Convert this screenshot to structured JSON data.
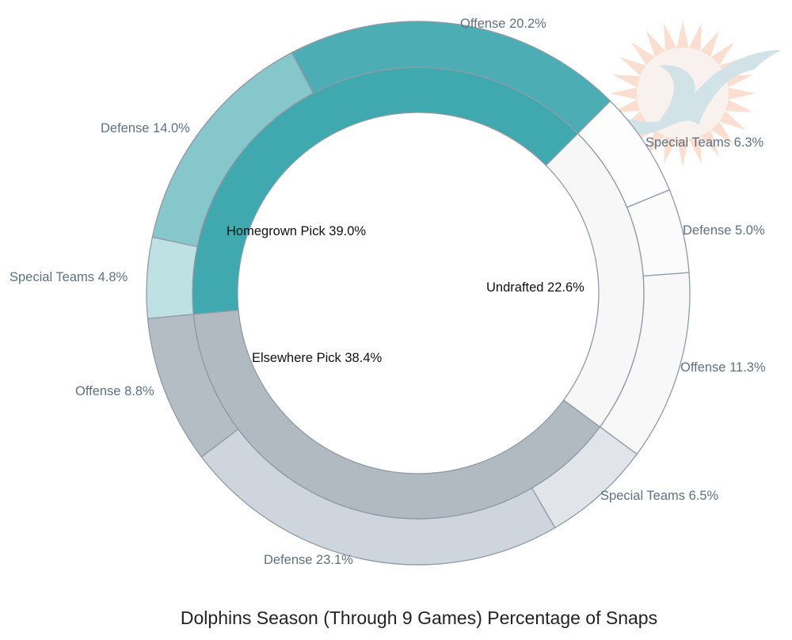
{
  "chart_data": {
    "type": "sunburst",
    "title": "Dolphins Season (Through 9 Games) Percentage of Snaps",
    "inner": [
      {
        "name": "Undrafted",
        "value": 22.6,
        "label": "Undrafted 22.6%",
        "color": "#f7f7f7",
        "children": [
          {
            "name": "Special Teams",
            "value": 6.3,
            "label": "Special Teams 6.3%",
            "color": "#fdfdfd"
          },
          {
            "name": "Defense",
            "value": 5.0,
            "label": "Defense 5.0%",
            "color": "#fbfbfb"
          },
          {
            "name": "Offense",
            "value": 11.3,
            "label": "Offense 11.3%",
            "color": "#f8f8f8"
          }
        ]
      },
      {
        "name": "Elsewhere Pick",
        "value": 38.4,
        "label": "Elsewhere Pick 38.4%",
        "color": "#b1b9c1",
        "children": [
          {
            "name": "Special Teams",
            "value": 6.5,
            "label": "Special Teams 6.5%",
            "color": "#e1e5e9"
          },
          {
            "name": "Defense",
            "value": 23.1,
            "label": "Defense 23.1%",
            "color": "#cfd5dc"
          },
          {
            "name": "Offense",
            "value": 8.8,
            "label": "Offense 8.8%",
            "color": "#b4bcc4"
          }
        ]
      },
      {
        "name": "Homegrown Pick",
        "value": 39.0,
        "label": "Homegrown Pick 39.0%",
        "color": "#3fa9af",
        "children": [
          {
            "name": "Special Teams",
            "value": 4.8,
            "label": "Special Teams 4.8%",
            "color": "#bee1e3"
          },
          {
            "name": "Defense",
            "value": 14.0,
            "label": "Defense 14.0%",
            "color": "#86c7cb"
          },
          {
            "name": "Offense",
            "value": 20.2,
            "label": "Offense 20.2%",
            "color": "#4caeb4"
          }
        ]
      }
    ],
    "logo": "Miami Dolphins logo watermark"
  }
}
